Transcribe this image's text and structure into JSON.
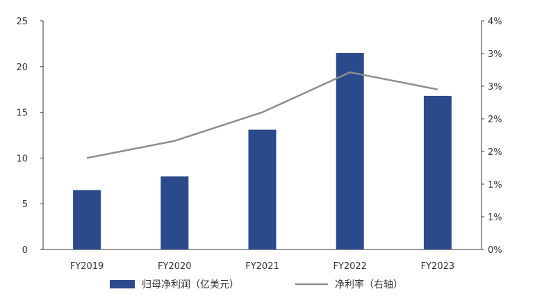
{
  "chart_data": {
    "type": "bar",
    "categories": [
      "FY2019",
      "FY2020",
      "FY2021",
      "FY2022",
      "FY2023"
    ],
    "series": [
      {
        "name": "归母净利润（亿美元）",
        "type": "bar",
        "axis": "left",
        "color": "#2b4a8b",
        "values": [
          6.5,
          8.0,
          13.1,
          21.5,
          16.8
        ]
      },
      {
        "name": "净利率（右轴）",
        "type": "line",
        "axis": "right",
        "color": "#8c8c8c",
        "values": [
          1.6,
          1.9,
          2.4,
          3.1,
          2.8
        ]
      }
    ],
    "ylim": [
      0,
      25
    ],
    "yticks": [
      "0",
      "5",
      "10",
      "15",
      "20",
      "25"
    ],
    "y2lim": [
      0,
      4
    ],
    "y2ticks": [
      "0%",
      "1%",
      "1%",
      "2%",
      "2%",
      "3%",
      "3%",
      "4%"
    ],
    "legend": "bottom",
    "grid": false
  }
}
